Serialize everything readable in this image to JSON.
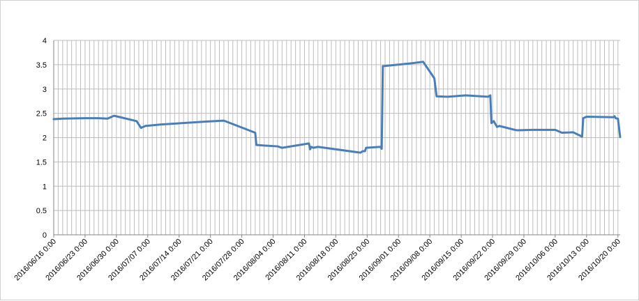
{
  "chart_data": {
    "type": "line",
    "title": "",
    "xlabel": "",
    "ylabel": "",
    "ylim": [
      0,
      4
    ],
    "y_ticks": [
      "0",
      "0.5",
      "1",
      "1.5",
      "2",
      "2.5",
      "3",
      "3.5",
      "4"
    ],
    "x_tick_labels": [
      "2016/06/16 0:00",
      "2016/06/23 0:00",
      "2016/06/30 0:00",
      "2016/07/07 0:00",
      "2016/07/14 0:00",
      "2016/07/21 0:00",
      "2016/07/28 0:00",
      "2016/08/04 0:00",
      "2016/08/11 0:00",
      "2016/08/18 0:00",
      "2016/08/25 0:00",
      "2016/09/01 0:00",
      "2016/09/08 0:00",
      "2016/09/15 0:00",
      "2016/09/22 0:00",
      "2016/09/29 0:00",
      "2016/10/06 0:00",
      "2016/10/13 0:00",
      "2016/10/20 0:00"
    ],
    "xlim": [
      "2016/06/16 0:00",
      "2016/10/20 12:00"
    ],
    "grid": "vertical and horizontal",
    "legend": "none",
    "series": [
      {
        "color": "#4a7ebb",
        "points": [
          [
            "2016/06/16 0:00",
            2.38
          ],
          [
            "2016/06/18 0:00",
            2.39
          ],
          [
            "2016/06/23 0:00",
            2.4
          ],
          [
            "2016/06/26 0:00",
            2.4
          ],
          [
            "2016/06/28 0:00",
            2.39
          ],
          [
            "2016/06/29 12:00",
            2.45
          ],
          [
            "2016/07/04 12:00",
            2.34
          ],
          [
            "2016/07/05 12:00",
            2.2
          ],
          [
            "2016/07/06 12:00",
            2.24
          ],
          [
            "2016/07/10 0:00",
            2.27
          ],
          [
            "2016/07/20 0:00",
            2.33
          ],
          [
            "2016/07/24 0:00",
            2.35
          ],
          [
            "2016/07/31 0:00",
            2.1
          ],
          [
            "2016/07/31 6:00",
            1.85
          ],
          [
            "2016/08/01 12:00",
            1.84
          ],
          [
            "2016/08/05 0:00",
            1.82
          ],
          [
            "2016/08/06 0:00",
            1.79
          ],
          [
            "2016/08/12 0:00",
            1.88
          ],
          [
            "2016/08/12 6:00",
            1.76
          ],
          [
            "2016/08/12 12:00",
            1.81
          ],
          [
            "2016/08/13 0:00",
            1.79
          ],
          [
            "2016/08/14 0:00",
            1.81
          ],
          [
            "2016/08/23 12:00",
            1.69
          ],
          [
            "2016/08/24 0:00",
            1.72
          ],
          [
            "2016/08/24 12:00",
            1.72
          ],
          [
            "2016/08/24 18:00",
            1.79
          ],
          [
            "2016/08/28 0:00",
            1.81
          ],
          [
            "2016/08/28 6:00",
            1.77
          ],
          [
            "2016/08/28 12:00",
            3.47
          ],
          [
            "2016/09/04 0:00",
            3.53
          ],
          [
            "2016/09/06 12:00",
            3.56
          ],
          [
            "2016/09/09 0:00",
            3.22
          ],
          [
            "2016/09/09 12:00",
            2.85
          ],
          [
            "2016/09/12 0:00",
            2.84
          ],
          [
            "2016/09/16 0:00",
            2.87
          ],
          [
            "2016/09/21 0:00",
            2.84
          ],
          [
            "2016/09/21 12:00",
            2.87
          ],
          [
            "2016/09/21 18:00",
            2.3
          ],
          [
            "2016/09/22 6:00",
            2.34
          ],
          [
            "2016/09/23 0:00",
            2.22
          ],
          [
            "2016/09/23 12:00",
            2.24
          ],
          [
            "2016/09/26 12:00",
            2.17
          ],
          [
            "2016/09/27 12:00",
            2.15
          ],
          [
            "2016/10/01 0:00",
            2.16
          ],
          [
            "2016/10/06 0:00",
            2.16
          ],
          [
            "2016/10/07 12:00",
            2.1
          ],
          [
            "2016/10/10 0:00",
            2.11
          ],
          [
            "2016/10/12 0:00",
            2.02
          ],
          [
            "2016/10/12 6:00",
            2.4
          ],
          [
            "2016/10/13 0:00",
            2.43
          ],
          [
            "2016/10/19 0:00",
            2.42
          ],
          [
            "2016/10/19 6:00",
            2.44
          ],
          [
            "2016/10/19 12:00",
            2.4
          ],
          [
            "2016/10/20 0:00",
            2.39
          ],
          [
            "2016/10/20 12:00",
            2.01
          ]
        ]
      }
    ]
  }
}
